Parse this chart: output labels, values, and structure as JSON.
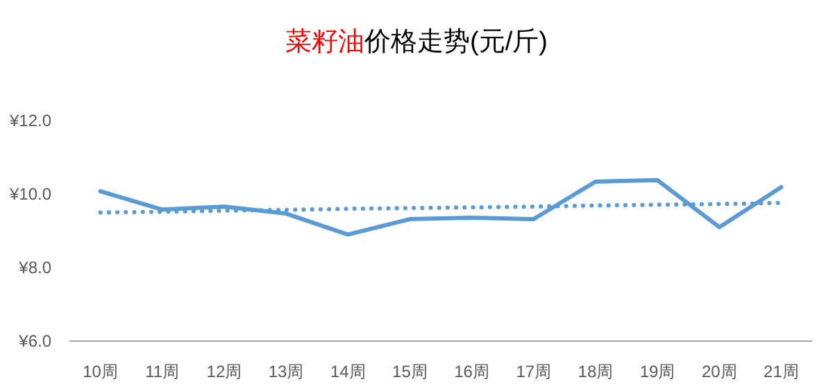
{
  "chart_data": {
    "type": "line",
    "title": [
      "菜籽油",
      "价格走势(元/斤)"
    ],
    "categories": [
      "10周",
      "11周",
      "12周",
      "13周",
      "14周",
      "15周",
      "16周",
      "17周",
      "18周",
      "19周",
      "20周",
      "21周"
    ],
    "series": [
      {
        "color": "#5b9bd5",
        "values": [
          10.08,
          9.58,
          9.66,
          9.47,
          8.9,
          9.32,
          9.36,
          9.32,
          10.34,
          10.38,
          9.1,
          10.19
        ]
      },
      {
        "color": "#5b9bd5",
        "line_style": "dotted",
        "values": [
          9.5,
          9.52,
          9.55,
          9.57,
          9.6,
          9.62,
          9.64,
          9.66,
          9.69,
          9.71,
          9.73,
          9.76
        ]
      }
    ],
    "ylim": [
      6,
      12
    ],
    "yticks": [
      {
        "value": 6,
        "label": "¥6.0"
      },
      {
        "value": 8,
        "label": "¥8.0"
      },
      {
        "value": 10,
        "label": "¥10.0"
      },
      {
        "value": 12,
        "label": "¥12.0"
      }
    ],
    "grid": false
  }
}
